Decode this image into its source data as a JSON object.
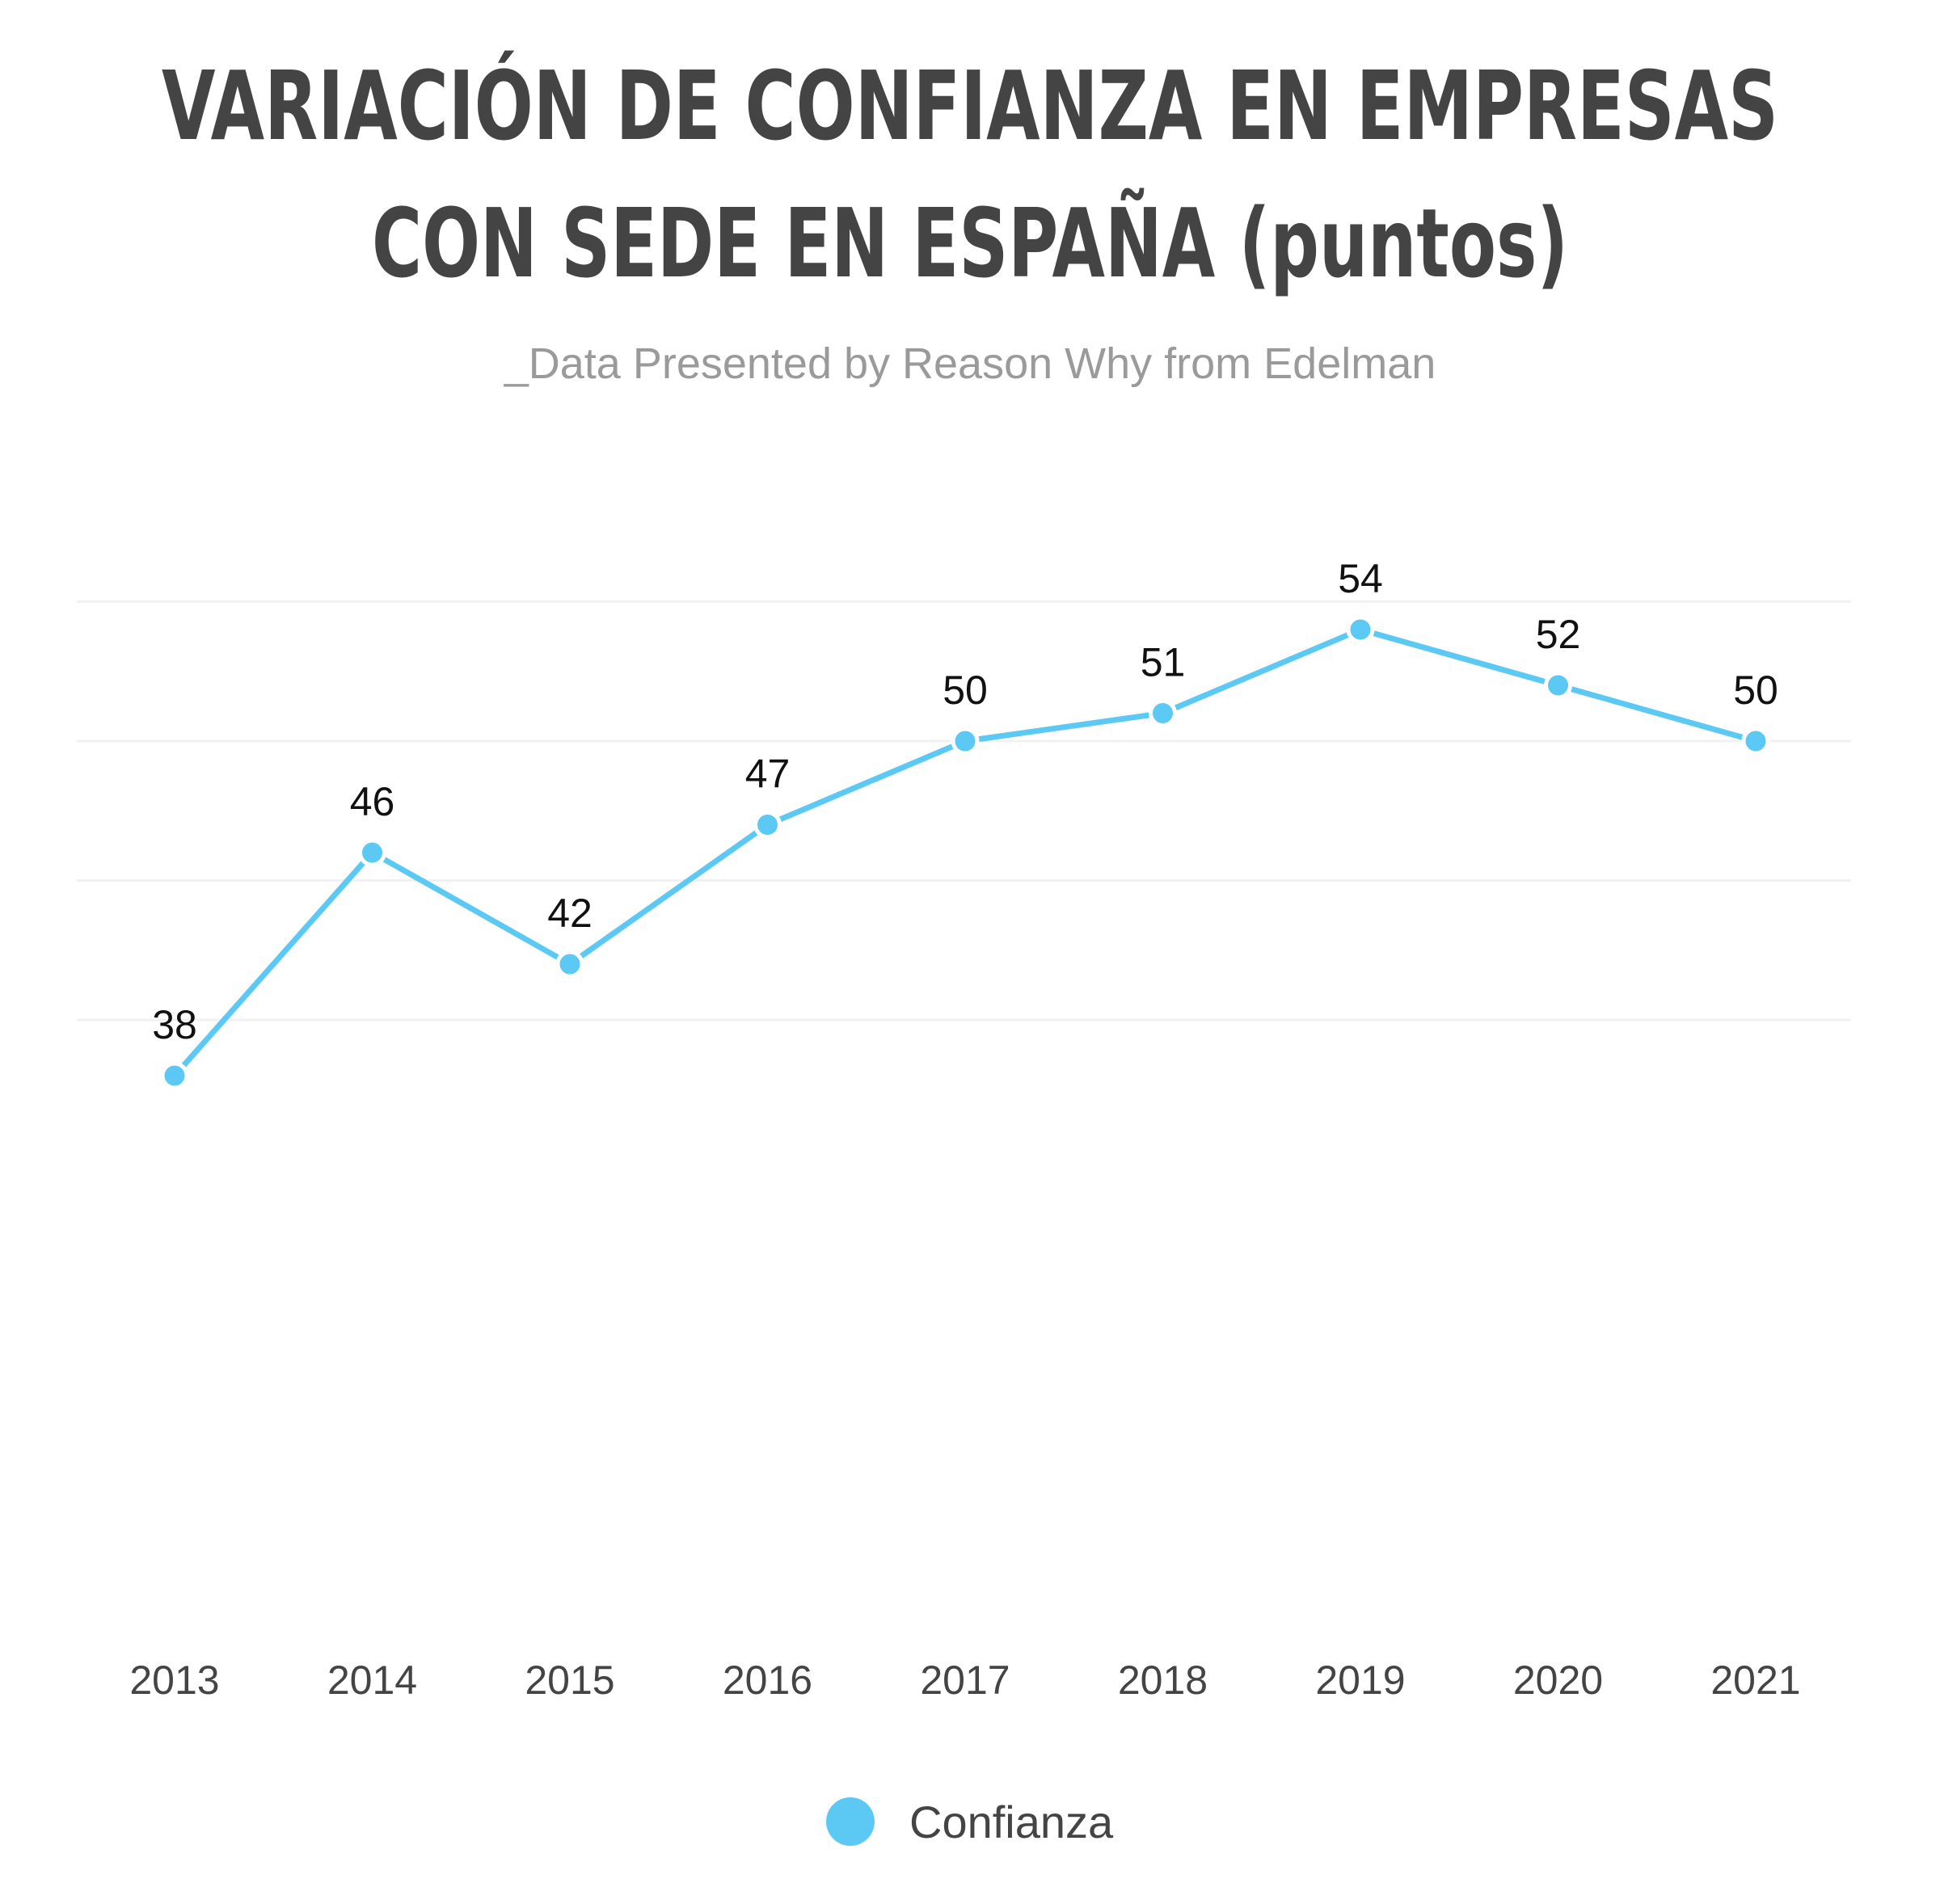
{
  "chart_data": {
    "type": "line",
    "title_lines": [
      "VARIACIÓN DE CONFIANZA EN EMPRESAS",
      "CON SEDE EN ESPAÑA (puntos)"
    ],
    "subtitle": "_Data Presented by Reason Why from Edelman",
    "categories": [
      "2013",
      "2014",
      "2015",
      "2016",
      "2017",
      "2018",
      "2019",
      "2020",
      "2021"
    ],
    "series": [
      {
        "name": "Confianza",
        "color": "#5cc9f5",
        "values": [
          38,
          46,
          42,
          47,
          50,
          51,
          54,
          52,
          50
        ]
      }
    ],
    "ylim": [
      36,
      56
    ],
    "grid": true,
    "legend_position": "bottom-center",
    "data_labels": true
  }
}
